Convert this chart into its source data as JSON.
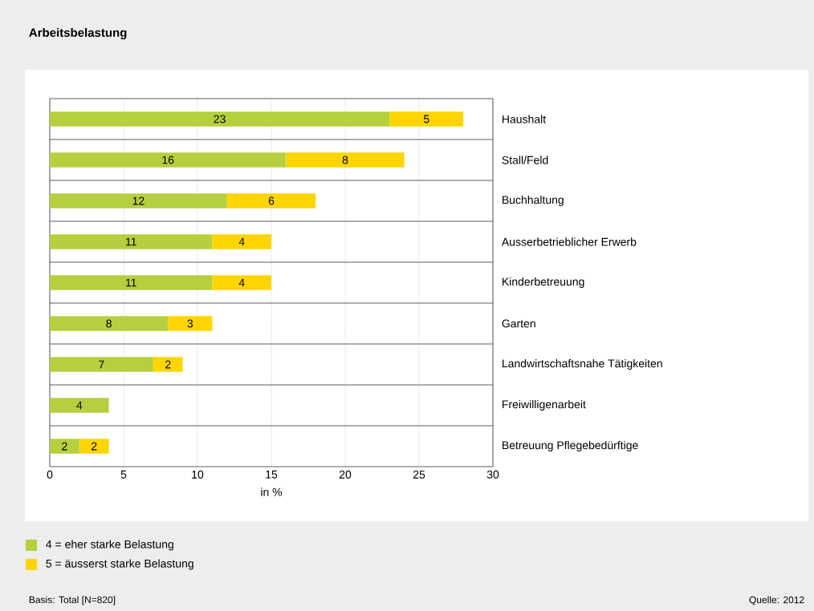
{
  "chart_data": {
    "type": "bar",
    "orientation": "horizontal",
    "stacked": true,
    "title": "Arbeitsbelastung",
    "xlabel": "in %",
    "categories": [
      "Haushalt",
      "Stall/Feld",
      "Buchhaltung",
      "Ausserbetrieblicher Erwerb",
      "Kinderbetreuung",
      "Garten",
      "Landwirtschaftsnahe Tätigkeiten",
      "Freiwilligenarbeit",
      "Betreuung Pflegebedürftige"
    ],
    "series": [
      {
        "name": "4 = eher starke Belastung",
        "color": "#b5cf3f",
        "values": [
          23,
          16,
          12,
          11,
          11,
          8,
          7,
          4,
          2
        ]
      },
      {
        "name": "5 = äusserst starke Belastung",
        "color": "#ffd500",
        "values": [
          5,
          8,
          6,
          4,
          4,
          3,
          2,
          null,
          2
        ]
      }
    ],
    "xlim": [
      0,
      30
    ],
    "xticks": [
      0,
      5,
      10,
      15,
      20,
      25,
      30
    ],
    "grid": true,
    "legend": "bottom",
    "data_labels": true,
    "annotations": [
      "Basis: Total [N=820]",
      "Quelle: 2012"
    ]
  }
}
